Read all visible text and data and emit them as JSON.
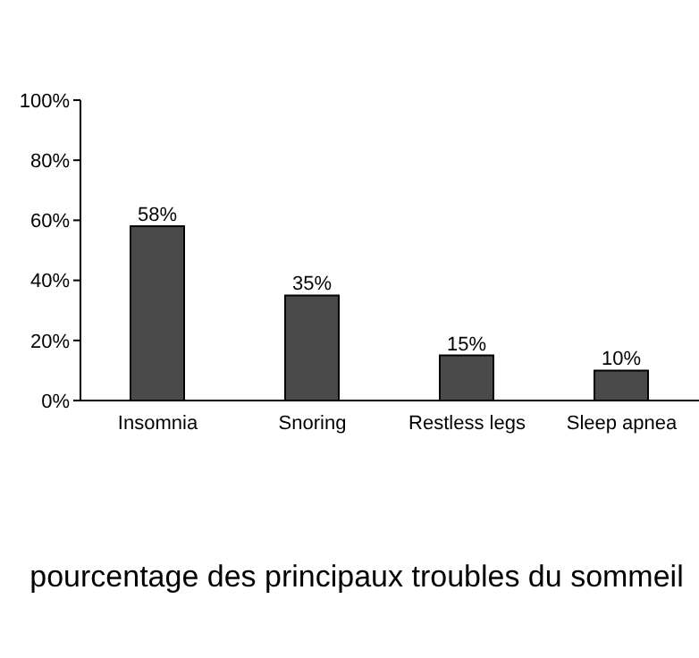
{
  "chart_data": {
    "type": "bar",
    "title": "pourcentage des principaux troubles du sommeil",
    "categories": [
      "Insomnia",
      "Snoring",
      "Restless legs",
      "Sleep apnea"
    ],
    "values": [
      58,
      35,
      15,
      10
    ],
    "value_labels": [
      "58%",
      "35%",
      "15%",
      "10%"
    ],
    "color": "#4a4a4a",
    "ylim": [
      0,
      100
    ],
    "yticks": [
      {
        "value": 0,
        "label": "0%"
      },
      {
        "value": 20,
        "label": "20%"
      },
      {
        "value": 40,
        "label": "40%"
      },
      {
        "value": 60,
        "label": "60%"
      },
      {
        "value": 80,
        "label": "80%"
      },
      {
        "value": 100,
        "label": "100%"
      }
    ],
    "grid": false,
    "legend": false
  }
}
